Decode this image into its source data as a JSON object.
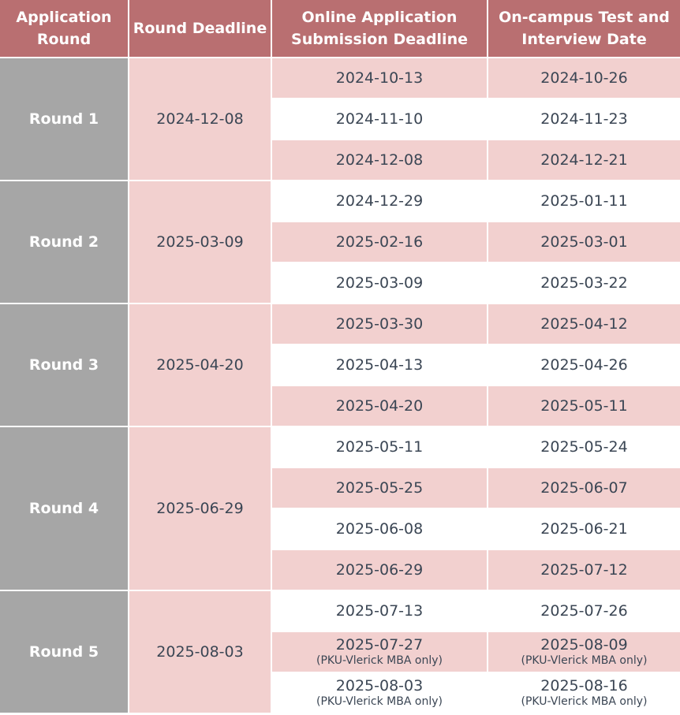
{
  "headers": {
    "round": "Application Round",
    "round_deadline": "Round Deadline",
    "online": "Online Application Submission Deadline",
    "interview": "On-campus Test and Interview Date"
  },
  "rounds": [
    {
      "label": "Round 1",
      "deadline": "2024-12-08",
      "rows": [
        {
          "online": "2024-10-13",
          "interview": "2024-10-26",
          "note": ""
        },
        {
          "online": "2024-11-10",
          "interview": "2024-11-23",
          "note": ""
        },
        {
          "online": "2024-12-08",
          "interview": "2024-12-21",
          "note": ""
        }
      ]
    },
    {
      "label": "Round 2",
      "deadline": "2025-03-09",
      "rows": [
        {
          "online": "2024-12-29",
          "interview": "2025-01-11",
          "note": ""
        },
        {
          "online": "2025-02-16",
          "interview": "2025-03-01",
          "note": ""
        },
        {
          "online": "2025-03-09",
          "interview": "2025-03-22",
          "note": ""
        }
      ]
    },
    {
      "label": "Round 3",
      "deadline": "2025-04-20",
      "rows": [
        {
          "online": "2025-03-30",
          "interview": "2025-04-12",
          "note": ""
        },
        {
          "online": "2025-04-13",
          "interview": "2025-04-26",
          "note": ""
        },
        {
          "online": "2025-04-20",
          "interview": "2025-05-11",
          "note": ""
        }
      ]
    },
    {
      "label": "Round 4",
      "deadline": "2025-06-29",
      "rows": [
        {
          "online": "2025-05-11",
          "interview": "2025-05-24",
          "note": ""
        },
        {
          "online": "2025-05-25",
          "interview": "2025-06-07",
          "note": ""
        },
        {
          "online": "2025-06-08",
          "interview": "2025-06-21",
          "note": ""
        },
        {
          "online": "2025-06-29",
          "interview": "2025-07-12",
          "note": ""
        }
      ]
    },
    {
      "label": "Round 5",
      "deadline": "2025-08-03",
      "rows": [
        {
          "online": "2025-07-13",
          "interview": "2025-07-26",
          "note": ""
        },
        {
          "online": "2025-07-27",
          "interview": "2025-08-09",
          "note": "(PKU-Vlerick MBA only)"
        },
        {
          "online": "2025-08-03",
          "interview": "2025-08-16",
          "note": "(PKU-Vlerick MBA only)"
        }
      ]
    }
  ],
  "colors": {
    "header_bg": "#b96f71",
    "round_bg": "#a6a6a6",
    "pink_row": "#f2d0cf",
    "text": "#3b4654"
  }
}
